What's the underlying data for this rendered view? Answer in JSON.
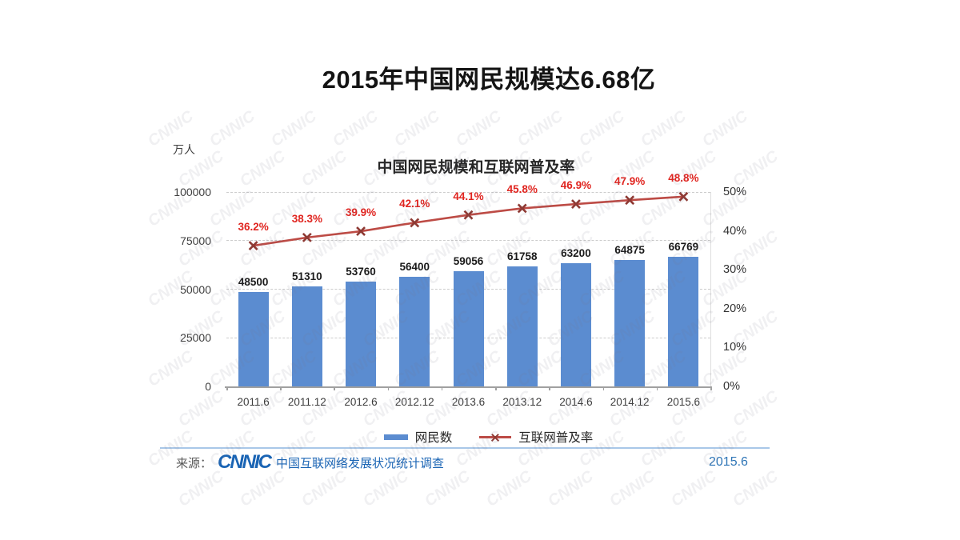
{
  "slide": {
    "title": "2015年中国网民规模达6.68亿"
  },
  "chart": {
    "title": "中国网民规模和互联网普及率",
    "unit_label": "万人",
    "watermark_text": "CNNIC",
    "legend": {
      "bars_label": "网民数",
      "line_label": "互联网普及率"
    }
  },
  "chart_data": {
    "type": "bar",
    "title": "中国网民规模和互联网普及率",
    "categories": [
      "2011.6",
      "2011.12",
      "2012.6",
      "2012.12",
      "2013.6",
      "2013.12",
      "2014.6",
      "2014.12",
      "2015.6"
    ],
    "series": [
      {
        "name": "网民数",
        "type": "bar",
        "axis": "left",
        "color": "#5b8cd0",
        "values": [
          48500,
          51310,
          53760,
          56400,
          59056,
          61758,
          63200,
          64875,
          66769
        ]
      },
      {
        "name": "互联网普及率",
        "type": "line",
        "axis": "right",
        "color": "#bd4b45",
        "marker": "x",
        "marker_color": "#8e3a34",
        "label_color": "#e02520",
        "values_percent": [
          36.2,
          38.3,
          39.9,
          42.1,
          44.1,
          45.8,
          46.9,
          47.9,
          48.8
        ]
      }
    ],
    "left_axis": {
      "unit": "万人",
      "min": 0,
      "max": 100000,
      "ticks": [
        0,
        25000,
        50000,
        75000,
        100000
      ]
    },
    "right_axis": {
      "min_percent": 0,
      "max_percent": 50,
      "ticks_percent": [
        0,
        10,
        20,
        30,
        40,
        50
      ]
    },
    "grid": "dashed-horizontal",
    "legend_position": "bottom"
  },
  "footer": {
    "source_prefix": "来源：",
    "logo_text": "CNNIC",
    "source_name": "中国互联网络发展状况统计调查",
    "date": "2015.6"
  },
  "colors": {
    "bar": "#5b8cd0",
    "line": "#bd4b45",
    "line_marker": "#8e3a34",
    "line_label": "#e02520",
    "footer_blue": "#1a64b4",
    "separator": "#a9c7e8",
    "gridline": "#cccccc",
    "axis_line": "#a0a0a0"
  }
}
